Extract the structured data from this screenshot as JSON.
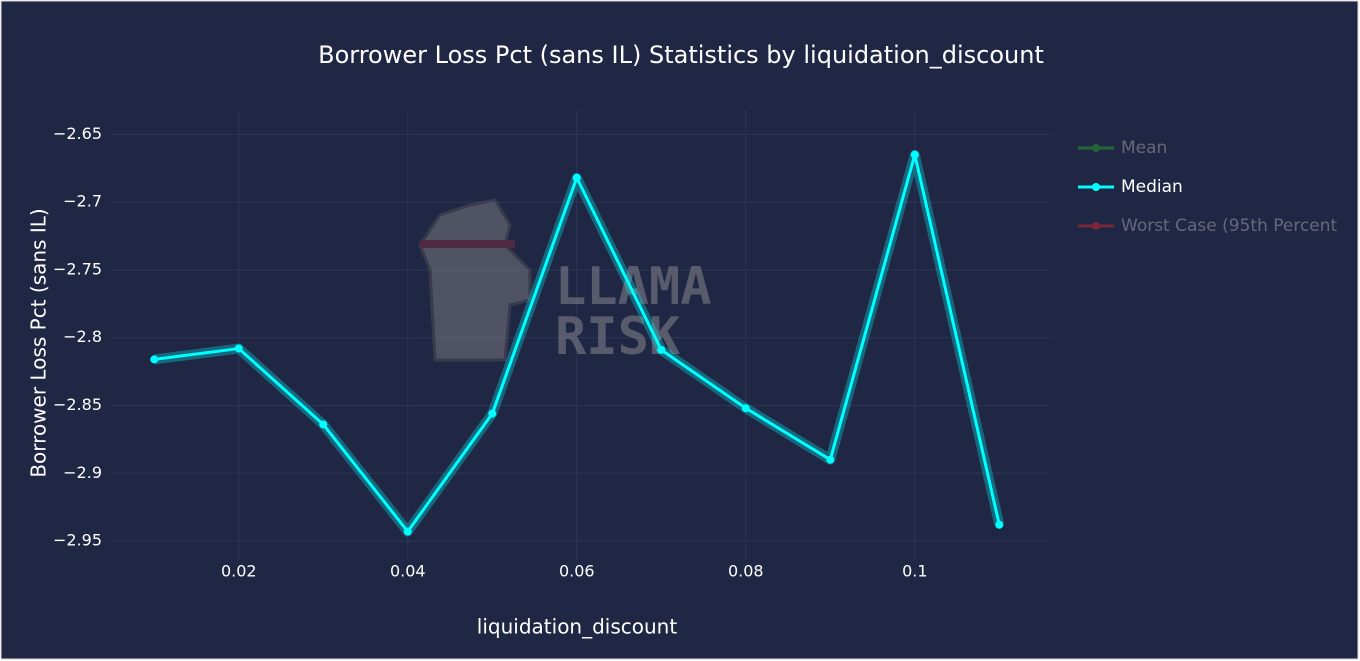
{
  "chart_data": {
    "type": "line",
    "title": "Borrower Loss Pct (sans IL) Statistics by liquidation_discount",
    "x_label": "liquidation_discount",
    "y_label": "Borrower Loss Pct (sans IL)",
    "watermark": [
      "LLAMA",
      "RISK"
    ],
    "x": [
      0.01,
      0.02,
      0.03,
      0.04,
      0.05,
      0.06,
      0.07,
      0.08,
      0.09,
      0.1,
      0.11
    ],
    "series": [
      {
        "name": "Mean",
        "color": "#2ca02c",
        "visible": false
      },
      {
        "name": "Median",
        "color": "#00ffff",
        "visible": true,
        "values": [
          -2.816,
          -2.808,
          -2.864,
          -2.943,
          -2.856,
          -2.682,
          -2.809,
          -2.852,
          -2.89,
          -2.665,
          -2.938
        ]
      },
      {
        "name": "Worst Case (95th Percent",
        "color": "#d62728",
        "visible": false
      }
    ],
    "xlim": [
      0.005,
      0.116
    ],
    "ylim": [
      -2.964,
      -2.632
    ],
    "xticks": [
      0.02,
      0.04,
      0.06,
      0.08,
      0.1
    ],
    "yticks": [
      {
        "value": -2.65,
        "label": "−2.65"
      },
      {
        "value": -2.7,
        "label": "−2.7"
      },
      {
        "value": -2.75,
        "label": "−2.75"
      },
      {
        "value": -2.8,
        "label": "−2.8"
      },
      {
        "value": -2.85,
        "label": "−2.85"
      },
      {
        "value": -2.9,
        "label": "−2.9"
      },
      {
        "value": -2.95,
        "label": "−2.95"
      }
    ],
    "grid": true,
    "legend": "right"
  }
}
